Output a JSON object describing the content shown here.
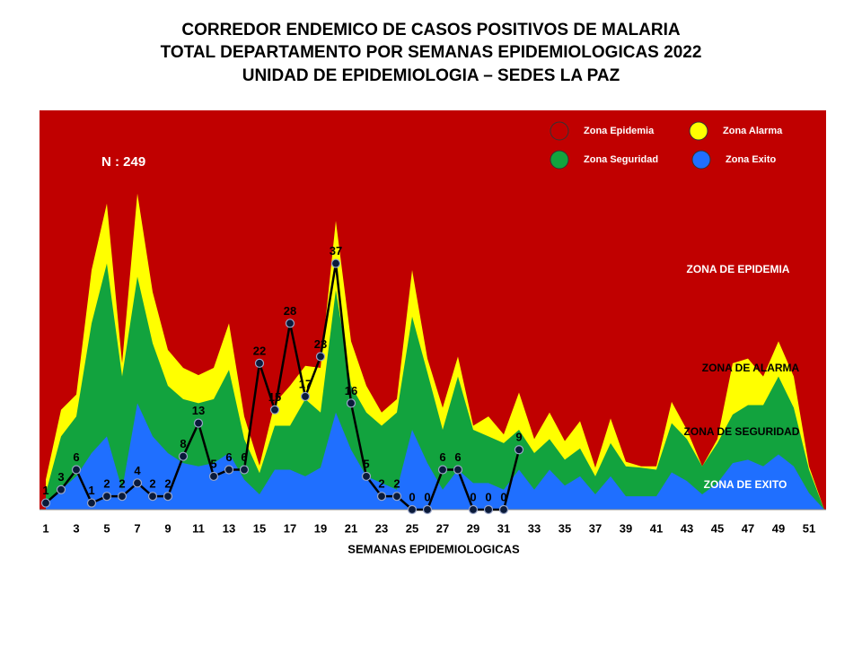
{
  "chart_data": {
    "type": "corridor",
    "title": [
      "CORREDOR ENDEMICO DE CASOS POSITIVOS DE MALARIA",
      "TOTAL DEPARTAMENTO POR SEMANAS EPIDEMIOLOGICAS 2022",
      "UNIDAD DE EPIDEMIOLOGIA – SEDES LA PAZ"
    ],
    "x_label": "SEMANAS EPIDEMIOLOGICAS",
    "x": [
      1,
      2,
      3,
      4,
      5,
      6,
      7,
      8,
      9,
      10,
      11,
      12,
      13,
      14,
      15,
      16,
      17,
      18,
      19,
      20,
      21,
      22,
      23,
      24,
      25,
      26,
      27,
      28,
      29,
      30,
      31,
      32,
      33,
      34,
      35,
      36,
      37,
      38,
      39,
      40,
      41,
      42,
      43,
      44,
      45,
      46,
      47,
      48,
      49,
      50,
      51,
      52
    ],
    "xlim": [
      1,
      52
    ],
    "xticks": [
      1,
      3,
      5,
      7,
      9,
      11,
      13,
      15,
      17,
      19,
      21,
      23,
      25,
      27,
      29,
      31,
      33,
      35,
      37,
      39,
      41,
      43,
      45,
      47,
      49,
      51
    ],
    "ylim": [
      0,
      60
    ],
    "background": {
      "name": "Zona Epidemia",
      "color": "#c00000"
    },
    "series": [
      {
        "name": "Zona Alarma",
        "color": "#ffff00",
        "values": [
          4.5,
          15,
          17.3,
          36,
          46,
          22,
          47.5,
          32.7,
          24,
          21.3,
          20.2,
          21.3,
          28,
          14,
          6.6,
          16,
          18.6,
          21.6,
          21.3,
          43.4,
          25.3,
          18.6,
          14.6,
          16.6,
          36,
          22.7,
          15.3,
          23,
          12.6,
          14,
          11.3,
          17.6,
          10.6,
          14.6,
          10.3,
          13.3,
          6.3,
          13.7,
          7.2,
          6.5,
          6.5,
          16.2,
          12,
          6.5,
          10.6,
          22,
          22.7,
          20,
          25.3,
          20,
          6.5,
          0
        ]
      },
      {
        "name": "Zona Seguridad",
        "color": "#12a33e",
        "values": [
          2.5,
          11,
          14,
          28,
          37,
          20,
          35,
          25,
          18.6,
          16.6,
          16,
          16.6,
          21,
          10.6,
          5.5,
          12.6,
          12.6,
          16.6,
          14.6,
          33,
          18.6,
          14.6,
          12.6,
          14.6,
          29,
          20.6,
          12,
          20,
          12,
          11,
          10,
          12,
          8.5,
          10.6,
          7.5,
          9.2,
          5,
          10,
          6.5,
          6.3,
          6,
          13,
          10.6,
          6.5,
          10,
          14.3,
          15.7,
          15.7,
          20,
          15.3,
          6,
          0
        ]
      },
      {
        "name": "Zona Exito",
        "color": "#1f6fff",
        "values": [
          1,
          3,
          5,
          8.5,
          11,
          3,
          16,
          11,
          8.5,
          7,
          6.5,
          7,
          8.5,
          4.5,
          2.3,
          6,
          6,
          5,
          6.3,
          14.6,
          9,
          5,
          4,
          3,
          12,
          7,
          3,
          6,
          4,
          4,
          3,
          6,
          3,
          6,
          3.6,
          5,
          2.3,
          5,
          2,
          2,
          2,
          5.6,
          4.3,
          2.3,
          4,
          7,
          7.5,
          6.5,
          8.3,
          6.5,
          2.5,
          0
        ]
      }
    ],
    "values": [
      1,
      3,
      6,
      1,
      2,
      2,
      4,
      2,
      2,
      8,
      13,
      5,
      6,
      6,
      22,
      15,
      28,
      17,
      23,
      37,
      16,
      5,
      2,
      2,
      0,
      0,
      6,
      6,
      0,
      0,
      0,
      9,
      null,
      null,
      null,
      null,
      null,
      null,
      null,
      null,
      null,
      null,
      null,
      null,
      null,
      null,
      null,
      null,
      null,
      null,
      null,
      null
    ],
    "line_color": "#000000",
    "marker_color": "#0a1a3a",
    "annotations": [
      "N : 249",
      "ZONA DE EPIDEMIA",
      "ZONA DE ALARMA",
      "ZONA DE  SEGURIDAD",
      "ZONA DE  EXITO"
    ]
  }
}
